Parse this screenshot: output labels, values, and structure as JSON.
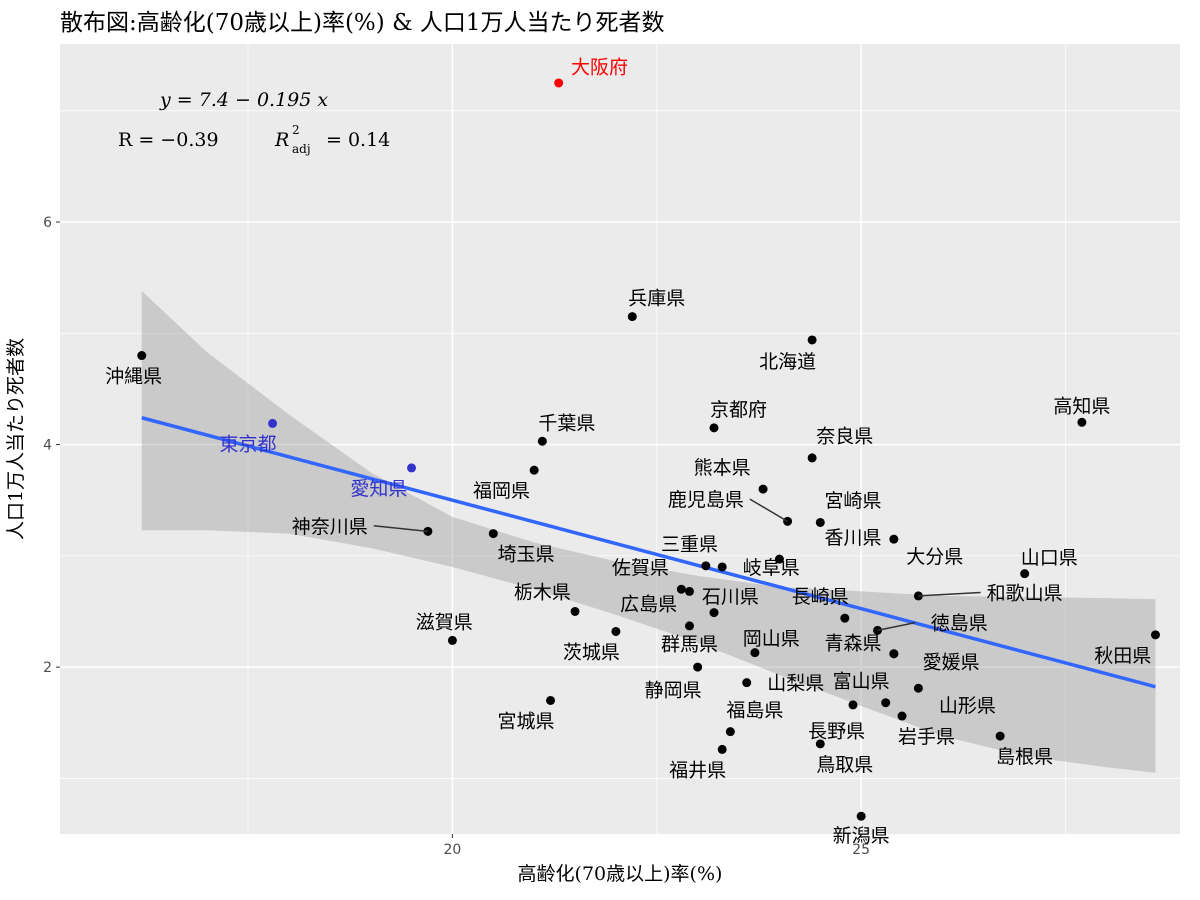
{
  "chart_data": {
    "type": "scatter",
    "title": "散布図:高齢化(70歳以上)率(%) & 人口1万人当たり死者数",
    "xlabel": "高齢化(70歳以上)率(%)",
    "ylabel": "人口1万人当たり死者数",
    "xlim": [
      15.2,
      28.9
    ],
    "ylim": [
      0.5,
      7.6
    ],
    "x_ticks": [
      20,
      25
    ],
    "y_ticks": [
      2,
      4,
      6
    ],
    "grid": true,
    "background": "#ebebeb",
    "annotation": {
      "equation": "y = 7.4 − 0.195 x",
      "r_label": "R = −0.39",
      "r2_label": "R",
      "r2_sup": "2",
      "r2_sub": "adj",
      "r2_value": "= 0.14"
    },
    "regression": {
      "intercept": 7.4,
      "slope": -0.195,
      "color": "#3366ff",
      "band_fill": "#999999",
      "band": [
        {
          "x": 16.2,
          "lo": 3.23,
          "hi": 5.38
        },
        {
          "x": 17.0,
          "lo": 3.23,
          "hi": 4.83
        },
        {
          "x": 18.0,
          "lo": 3.2,
          "hi": 4.27
        },
        {
          "x": 19.0,
          "lo": 3.07,
          "hi": 3.75
        },
        {
          "x": 20.0,
          "lo": 2.9,
          "hi": 3.35
        },
        {
          "x": 21.0,
          "lo": 2.7,
          "hi": 3.12
        },
        {
          "x": 22.0,
          "lo": 2.47,
          "hi": 2.95
        },
        {
          "x": 23.0,
          "lo": 2.22,
          "hi": 2.82
        },
        {
          "x": 24.0,
          "lo": 1.93,
          "hi": 2.72
        },
        {
          "x": 25.0,
          "lo": 1.65,
          "hi": 2.68
        },
        {
          "x": 26.0,
          "lo": 1.38,
          "hi": 2.64
        },
        {
          "x": 27.0,
          "lo": 1.2,
          "hi": 2.63
        },
        {
          "x": 28.0,
          "lo": 1.1,
          "hi": 2.62
        },
        {
          "x": 28.6,
          "lo": 1.05,
          "hi": 2.61
        }
      ]
    },
    "points": [
      {
        "name": "大阪府",
        "x": 21.3,
        "y": 7.25,
        "color": "#ff0000",
        "label_color": "#ff0000",
        "label_dx": 0.5,
        "label_dy": 0.15
      },
      {
        "name": "兵庫県",
        "x": 22.2,
        "y": 5.15,
        "color": "#000000",
        "label_color": "#000000",
        "label_dx": 0.3,
        "label_dy": 0.17
      },
      {
        "name": "北海道",
        "x": 24.4,
        "y": 4.94,
        "color": "#000000",
        "label_color": "#000000",
        "label_dx": -0.3,
        "label_dy": -0.19
      },
      {
        "name": "沖縄県",
        "x": 16.2,
        "y": 4.8,
        "color": "#000000",
        "label_color": "#000000",
        "label_dx": -0.1,
        "label_dy": -0.18
      },
      {
        "name": "高知県",
        "x": 27.7,
        "y": 4.2,
        "color": "#000000",
        "label_color": "#000000",
        "label_dx": 0.0,
        "label_dy": 0.15
      },
      {
        "name": "東京都",
        "x": 17.8,
        "y": 4.19,
        "color": "#3333cc",
        "label_color": "#3333cc",
        "label_dx": -0.3,
        "label_dy": -0.18
      },
      {
        "name": "京都府",
        "x": 23.2,
        "y": 4.15,
        "color": "#000000",
        "label_color": "#000000",
        "label_dx": 0.3,
        "label_dy": 0.17
      },
      {
        "name": "千葉県",
        "x": 21.1,
        "y": 4.03,
        "color": "#000000",
        "label_color": "#000000",
        "label_dx": 0.3,
        "label_dy": 0.17
      },
      {
        "name": "奈良県",
        "x": 24.4,
        "y": 3.88,
        "color": "#000000",
        "label_color": "#000000",
        "label_dx": 0.4,
        "label_dy": 0.2
      },
      {
        "name": "愛知県",
        "x": 19.5,
        "y": 3.79,
        "color": "#3333cc",
        "label_color": "#3333cc",
        "label_dx": -0.4,
        "label_dy": -0.18
      },
      {
        "name": "福岡県",
        "x": 21.0,
        "y": 3.77,
        "color": "#000000",
        "label_color": "#000000",
        "label_dx": -0.4,
        "label_dy": -0.18
      },
      {
        "name": "熊本県",
        "x": 23.8,
        "y": 3.6,
        "color": "#000000",
        "label_color": "#000000",
        "label_dx": -0.5,
        "label_dy": 0.2
      },
      {
        "name": "鹿児島県",
        "x": 24.1,
        "y": 3.31,
        "color": "#000000",
        "label_color": "#000000",
        "label_dx": -1.0,
        "label_dy": 0.2
      },
      {
        "name": "宮崎県",
        "x": 24.5,
        "y": 3.3,
        "color": "#000000",
        "label_color": "#000000",
        "label_dx": 0.4,
        "label_dy": 0.2
      },
      {
        "name": "神奈川県",
        "x": 19.7,
        "y": 3.22,
        "color": "#000000",
        "label_color": "#000000",
        "label_dx": -1.2,
        "label_dy": 0.05
      },
      {
        "name": "埼玉県",
        "x": 20.5,
        "y": 3.2,
        "color": "#000000",
        "label_color": "#000000",
        "label_dx": 0.4,
        "label_dy": -0.18
      },
      {
        "name": "大分県",
        "x": 25.4,
        "y": 3.15,
        "color": "#000000",
        "label_color": "#000000",
        "label_dx": 0.5,
        "label_dy": -0.15
      },
      {
        "name": "香川県",
        "x": 24.0,
        "y": 2.97,
        "color": "#000000",
        "label_color": "#000000",
        "label_dx": 0.9,
        "label_dy": 0.2
      },
      {
        "name": "三重県",
        "x": 23.1,
        "y": 2.91,
        "color": "#000000",
        "label_color": "#000000",
        "label_dx": -0.2,
        "label_dy": 0.2
      },
      {
        "name": "岐阜県",
        "x": 23.3,
        "y": 2.9,
        "color": "#000000",
        "label_color": "#000000",
        "label_dx": 0.6,
        "label_dy": 0.0
      },
      {
        "name": "山口県",
        "x": 27.0,
        "y": 2.84,
        "color": "#000000",
        "label_color": "#000000",
        "label_dx": 0.3,
        "label_dy": 0.15
      },
      {
        "name": "佐賀県",
        "x": 22.8,
        "y": 2.7,
        "color": "#000000",
        "label_color": "#000000",
        "label_dx": -0.5,
        "label_dy": 0.2
      },
      {
        "name": "石川県",
        "x": 22.9,
        "y": 2.68,
        "color": "#000000",
        "label_color": "#000000",
        "label_dx": 0.5,
        "label_dy": -0.04
      },
      {
        "name": "和歌山県",
        "x": 25.7,
        "y": 2.64,
        "color": "#000000",
        "label_color": "#000000",
        "label_dx": 1.3,
        "label_dy": 0.03
      },
      {
        "name": "栃木県",
        "x": 21.5,
        "y": 2.5,
        "color": "#000000",
        "label_color": "#000000",
        "label_dx": -0.4,
        "label_dy": 0.18
      },
      {
        "name": "群馬県",
        "x": 23.2,
        "y": 2.49,
        "color": "#000000",
        "label_color": "#000000",
        "label_dx": -0.3,
        "label_dy": -0.28
      },
      {
        "name": "長崎県",
        "x": 24.8,
        "y": 2.44,
        "color": "#000000",
        "label_color": "#000000",
        "label_dx": -0.3,
        "label_dy": 0.2
      },
      {
        "name": "広島県",
        "x": 22.9,
        "y": 2.37,
        "color": "#000000",
        "label_color": "#000000",
        "label_dx": -0.5,
        "label_dy": 0.2
      },
      {
        "name": "徳島県",
        "x": 25.2,
        "y": 2.33,
        "color": "#000000",
        "label_color": "#000000",
        "label_dx": 1.0,
        "label_dy": 0.07
      },
      {
        "name": "茨城県",
        "x": 22.0,
        "y": 2.32,
        "color": "#000000",
        "label_color": "#000000",
        "label_dx": -0.3,
        "label_dy": -0.18
      },
      {
        "name": "秋田県",
        "x": 28.6,
        "y": 2.29,
        "color": "#000000",
        "label_color": "#000000",
        "label_dx": -0.4,
        "label_dy": -0.18
      },
      {
        "name": "滋賀県",
        "x": 20.0,
        "y": 2.24,
        "color": "#000000",
        "label_color": "#000000",
        "label_dx": -0.1,
        "label_dy": 0.17
      },
      {
        "name": "岡山県",
        "x": 23.7,
        "y": 2.13,
        "color": "#000000",
        "label_color": "#000000",
        "label_dx": 0.2,
        "label_dy": 0.13
      },
      {
        "name": "青森県",
        "x": 25.4,
        "y": 2.12,
        "color": "#000000",
        "label_color": "#000000",
        "label_dx": -0.5,
        "label_dy": 0.1
      },
      {
        "name": "愛媛県",
        "x": 25.4,
        "y": 2.12,
        "color": "#000000",
        "label_color": "#000000",
        "label_dx": 0.7,
        "label_dy": -0.07
      },
      {
        "name": "静岡県",
        "x": 23.0,
        "y": 2.0,
        "color": "#000000",
        "label_color": "#000000",
        "label_dx": -0.3,
        "label_dy": -0.2
      },
      {
        "name": "山梨県",
        "x": 23.6,
        "y": 1.86,
        "color": "#000000",
        "label_color": "#000000",
        "label_dx": 0.6,
        "label_dy": 0.0
      },
      {
        "name": "山形県",
        "x": 25.7,
        "y": 1.81,
        "color": "#000000",
        "label_color": "#000000",
        "label_dx": 0.6,
        "label_dy": -0.15
      },
      {
        "name": "宮城県",
        "x": 21.2,
        "y": 1.7,
        "color": "#000000",
        "label_color": "#000000",
        "label_dx": -0.3,
        "label_dy": -0.18
      },
      {
        "name": "富山県",
        "x": 25.3,
        "y": 1.68,
        "color": "#000000",
        "label_color": "#000000",
        "label_dx": -0.3,
        "label_dy": 0.2
      },
      {
        "name": "福島県",
        "x": 23.4,
        "y": 1.42,
        "color": "#000000",
        "label_color": "#000000",
        "label_dx": 0.3,
        "label_dy": 0.2
      },
      {
        "name": "長野県",
        "x": 24.9,
        "y": 1.66,
        "color": "#000000",
        "label_color": "#000000",
        "label_dx": -0.2,
        "label_dy": -0.23
      },
      {
        "name": "岩手県",
        "x": 25.5,
        "y": 1.56,
        "color": "#000000",
        "label_color": "#000000",
        "label_dx": 0.3,
        "label_dy": -0.18
      },
      {
        "name": "島根県",
        "x": 26.7,
        "y": 1.38,
        "color": "#000000",
        "label_color": "#000000",
        "label_dx": 0.3,
        "label_dy": -0.18
      },
      {
        "name": "鳥取県",
        "x": 24.5,
        "y": 1.31,
        "color": "#000000",
        "label_color": "#000000",
        "label_dx": 0.3,
        "label_dy": -0.18
      },
      {
        "name": "福井県",
        "x": 23.3,
        "y": 1.26,
        "color": "#000000",
        "label_color": "#000000",
        "label_dx": -0.3,
        "label_dy": -0.18
      },
      {
        "name": "新潟県",
        "x": 25.0,
        "y": 0.66,
        "color": "#000000",
        "label_color": "#000000",
        "label_dx": 0.0,
        "label_dy": -0.17
      }
    ]
  }
}
